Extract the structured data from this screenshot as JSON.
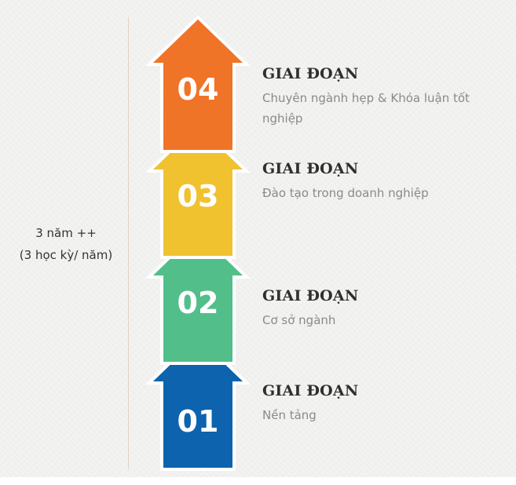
{
  "duration": {
    "line1": "3 năm ++",
    "line2": "(3 học kỳ/ năm)"
  },
  "stages": [
    {
      "number": "04",
      "title": "GIAI ĐOẠN",
      "description": "Chuyên ngành hẹp & Khóa luận tốt nghiệp",
      "color": "#f07428"
    },
    {
      "number": "03",
      "title": "GIAI ĐOẠN",
      "description": "Đào tạo trong doanh nghiệp",
      "color": "#f0c230"
    },
    {
      "number": "02",
      "title": "GIAI ĐOẠN",
      "description": "Cơ sở ngành",
      "color": "#52bf8b"
    },
    {
      "number": "01",
      "title": "GIAI ĐOẠN",
      "description": "Nền tảng",
      "color": "#0d63ad"
    }
  ]
}
